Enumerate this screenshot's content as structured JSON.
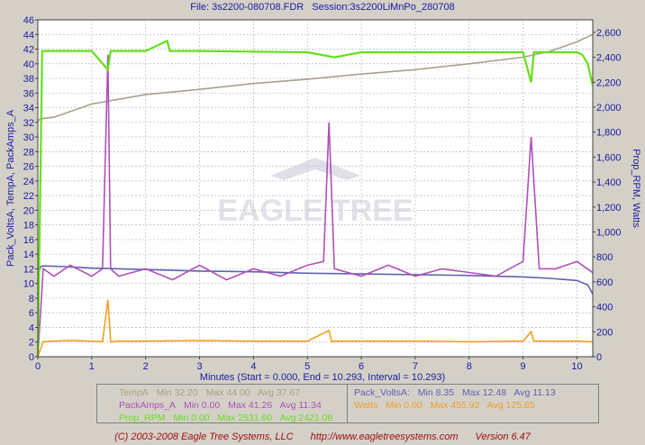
{
  "header": {
    "file_text": "File: 3s2200-080708.FDR",
    "session_text": "Session:3s2200LiMnPo_280708"
  },
  "chart_data": {
    "type": "line",
    "xlabel": "Minutes (Start = 0.000,  End = 10.293,  Interval = 10.293)",
    "ylabel_left": "Pack_VoltsA, TempA, PackAmps_A",
    "ylabel_right": "Prop_RPM, Watts",
    "xlim": [
      0,
      10.293
    ],
    "ylim_left": [
      0,
      46
    ],
    "ylim_right": [
      0,
      2700
    ],
    "x_ticks": [
      "0",
      "1",
      "2",
      "3",
      "4",
      "5",
      "6",
      "7",
      "8",
      "9",
      "10"
    ],
    "y_ticks_left": [
      "0",
      "2",
      "4",
      "6",
      "8",
      "10",
      "12",
      "14",
      "16",
      "18",
      "20",
      "22",
      "24",
      "26",
      "28",
      "30",
      "32",
      "34",
      "36",
      "38",
      "40",
      "42",
      "44",
      "46"
    ],
    "y_ticks_right": [
      "0",
      "200",
      "400",
      "600",
      "800",
      "1,000",
      "1,200",
      "1,400",
      "1,600",
      "1,800",
      "2,000",
      "2,200",
      "2,400",
      "2,600"
    ],
    "grid": true,
    "series": [
      {
        "name": "TempA",
        "axis": "left",
        "color": "#a8a088",
        "x": [
          0,
          0.05,
          0.3,
          1,
          2,
          3,
          4,
          5,
          6,
          7,
          8,
          9,
          9.5,
          10,
          10.29
        ],
        "y": [
          32.2,
          32.5,
          32.7,
          34.5,
          35.8,
          36.5,
          37.3,
          37.9,
          38.6,
          39.2,
          40.0,
          40.9,
          41.7,
          43.0,
          44.0
        ]
      },
      {
        "name": "Pack_VoltsA",
        "axis": "left",
        "color": "#6060b0",
        "x": [
          0,
          0.02,
          0.05,
          0.1,
          0.5,
          1,
          2,
          3,
          4,
          5,
          6,
          7,
          8,
          9,
          9.5,
          10,
          10.2,
          10.29
        ],
        "y": [
          8.35,
          11.5,
          12.3,
          12.4,
          12.3,
          12.1,
          11.9,
          11.7,
          11.6,
          11.4,
          11.3,
          11.2,
          11.1,
          10.9,
          10.7,
          10.4,
          9.8,
          8.6
        ]
      },
      {
        "name": "PackAmps_A",
        "axis": "left",
        "color": "#b050b8",
        "x": [
          0,
          0.1,
          0.3,
          0.6,
          1,
          1.2,
          1.3,
          1.35,
          1.5,
          2,
          2.5,
          3,
          3.5,
          4,
          4.5,
          5,
          5.3,
          5.4,
          5.5,
          6,
          6.5,
          7,
          7.5,
          8,
          8.5,
          9,
          9.15,
          9.3,
          9.6,
          10,
          10.29
        ],
        "y": [
          0,
          12,
          11,
          12.5,
          11,
          12,
          41.26,
          12,
          11,
          12,
          10.5,
          12.5,
          10.5,
          12,
          11,
          12.5,
          13,
          32,
          12,
          11,
          12.5,
          11,
          12,
          11.5,
          11,
          13,
          30,
          12,
          12,
          13,
          11.5
        ]
      },
      {
        "name": "Prop_RPM",
        "axis": "right",
        "color": "#66e01a",
        "x": [
          0,
          0.04,
          0.08,
          0.15,
          0.5,
          1,
          1.3,
          1.35,
          1.4,
          2,
          2.4,
          2.45,
          3,
          4,
          5,
          5.5,
          6,
          7,
          8,
          9,
          9.15,
          9.2,
          9.3,
          10,
          10.1,
          10.2,
          10.29
        ],
        "y": [
          0,
          1200,
          2450,
          2450,
          2450,
          2450,
          2300,
          2450,
          2450,
          2450,
          2531.6,
          2450,
          2450,
          2445,
          2440,
          2400,
          2440,
          2440,
          2440,
          2440,
          2200,
          2440,
          2440,
          2440,
          2420,
          2350,
          2180
        ]
      },
      {
        "name": "Watts",
        "axis": "right",
        "color": "#f0a020",
        "x": [
          0,
          0.1,
          0.3,
          0.6,
          1,
          1.2,
          1.3,
          1.35,
          1.5,
          2,
          3,
          4,
          5,
          5.4,
          5.45,
          5.5,
          6,
          7,
          8,
          9,
          9.15,
          9.2,
          10,
          10.29
        ],
        "y": [
          0,
          120,
          125,
          130,
          125,
          120,
          455.92,
          120,
          125,
          125,
          130,
          125,
          125,
          210,
          120,
          125,
          125,
          125,
          120,
          125,
          200,
          125,
          125,
          120
        ]
      }
    ]
  },
  "legend": {
    "rows": [
      {
        "name": "TempA",
        "min": "Min 32.20",
        "max": "Max 44.00",
        "avg": "Avg 37.67",
        "color": "#a8a088"
      },
      {
        "name": "PackAmps_A",
        "min": "Min 0.00",
        "max": "Max 41.26",
        "avg": "Avg 11.34",
        "color": "#b050b8"
      },
      {
        "name": "Prop_RPM",
        "min": "Min 0.00",
        "max": "Max 2531.60",
        "avg": "Avg 2421.08",
        "color": "#66e01a"
      },
      {
        "name": "Pack_VoltsA:",
        "min": "Min 8.35",
        "max": "Max 12.48",
        "avg": "Avg 11.13",
        "color": "#6060b0"
      },
      {
        "name": "Watts",
        "min": "Min 0.00",
        "max": "Max 455.92",
        "avg": "Avg 125.85",
        "color": "#f0a020"
      }
    ]
  },
  "footer": {
    "copyright": "(C) 2003-2008 Eagle Tree Systems, LLC",
    "url": "http://www.eagletreesystems.com",
    "version": "Version 6.47"
  },
  "watermark": {
    "text": "EAGLE TREE"
  }
}
